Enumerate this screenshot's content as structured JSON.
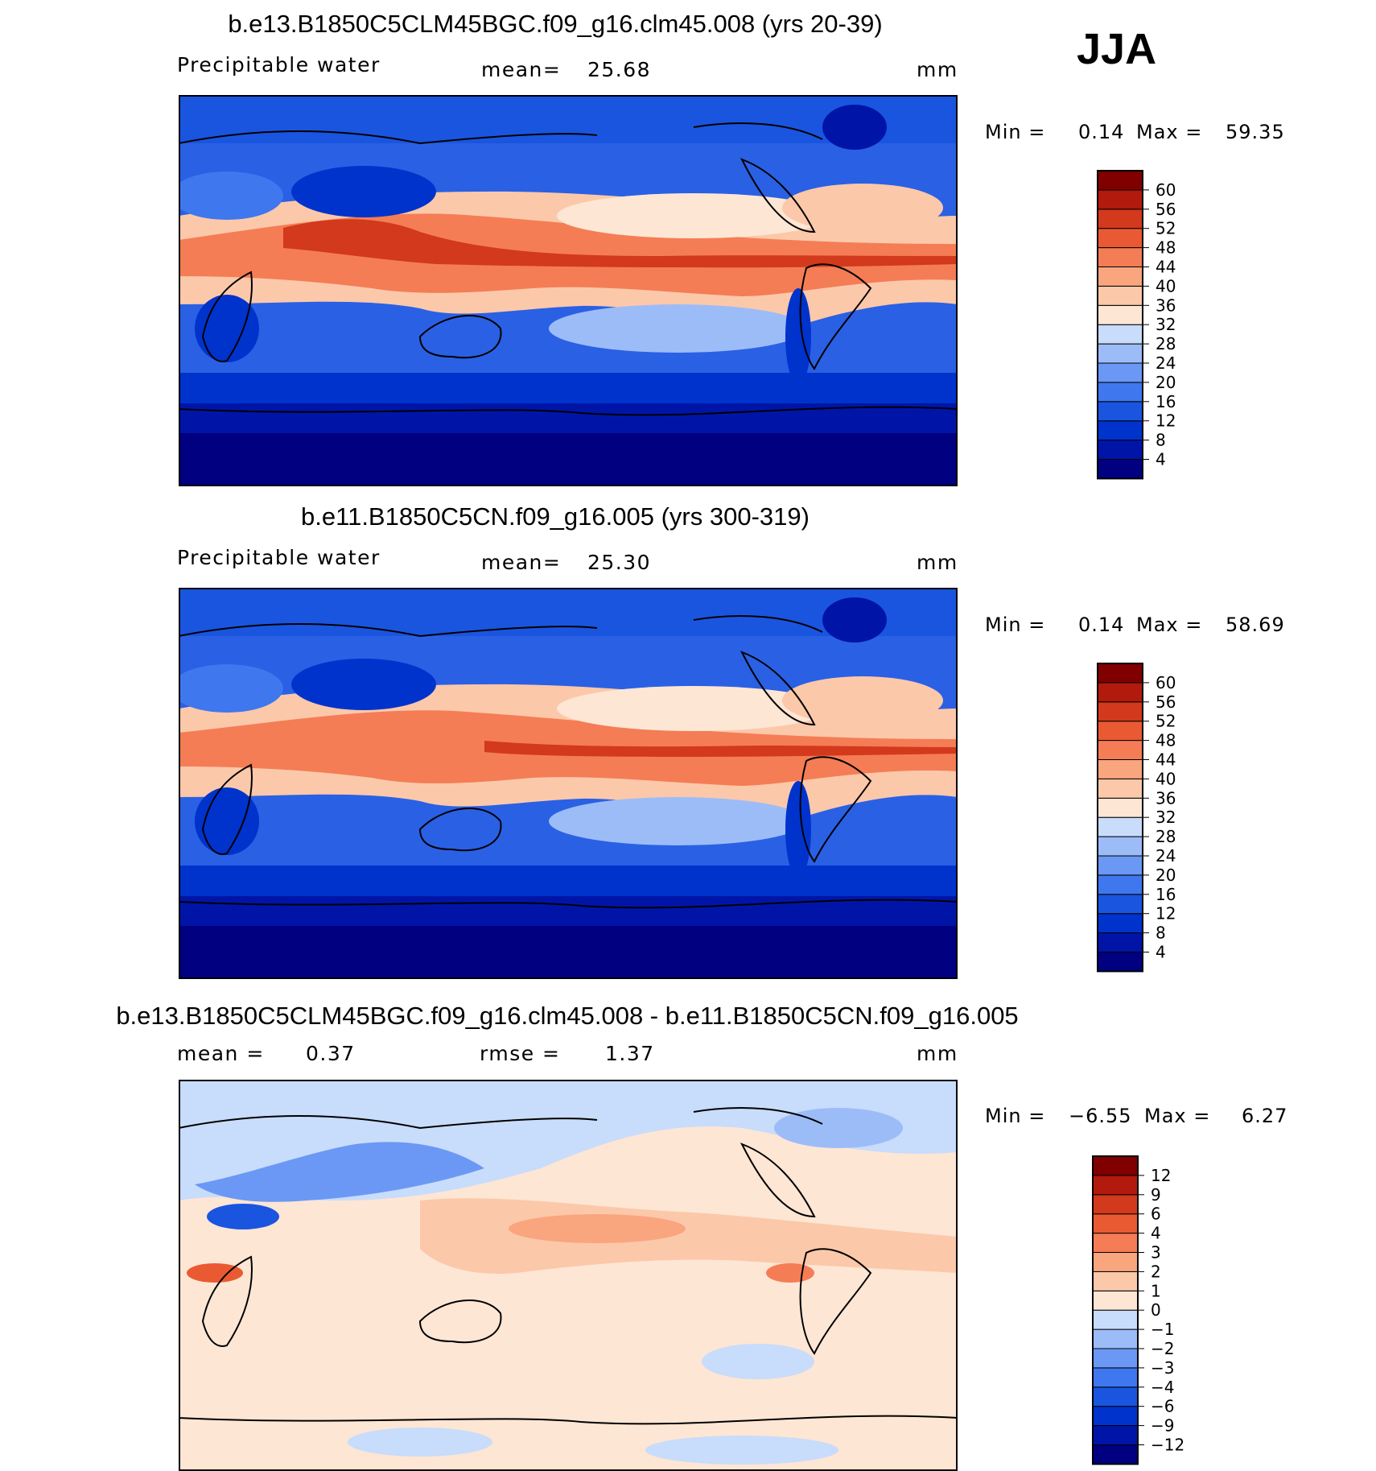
{
  "season": "JJA",
  "panels": [
    {
      "title": "b.e13.B1850C5CLM45BGC.f09_g16.clm45.008 (yrs 20-39)",
      "left": "Precipitable water",
      "center_label": "mean=",
      "center_value": "25.68",
      "units": "mm",
      "min_label": "Min =",
      "min_value": "0.14",
      "max_label": "Max =",
      "max_value": "59.35",
      "colorbar_labels": [
        "60",
        "56",
        "52",
        "48",
        "44",
        "40",
        "36",
        "32",
        "28",
        "24",
        "20",
        "16",
        "12",
        "8",
        "4"
      ],
      "colors": [
        "#000080",
        "#0015a8",
        "#0033cc",
        "#1a55e0",
        "#3f77ee",
        "#6b98f4",
        "#9cbcf8",
        "#c8dcfb",
        "#fde6d4",
        "#fcc8aa",
        "#f9a57e",
        "#f47d55",
        "#e95a33",
        "#d3391c",
        "#b11a0c",
        "#800000"
      ]
    },
    {
      "title": "b.e11.B1850C5CN.f09_g16.005 (yrs 300-319)",
      "left": "Precipitable water",
      "center_label": "mean=",
      "center_value": "25.30",
      "units": "mm",
      "min_label": "Min =",
      "min_value": "0.14",
      "max_label": "Max =",
      "max_value": "58.69",
      "colorbar_labels": [
        "60",
        "56",
        "52",
        "48",
        "44",
        "40",
        "36",
        "32",
        "28",
        "24",
        "20",
        "16",
        "12",
        "8",
        "4"
      ],
      "colors": [
        "#000080",
        "#0015a8",
        "#0033cc",
        "#1a55e0",
        "#3f77ee",
        "#6b98f4",
        "#9cbcf8",
        "#c8dcfb",
        "#fde6d4",
        "#fcc8aa",
        "#f9a57e",
        "#f47d55",
        "#e95a33",
        "#d3391c",
        "#b11a0c",
        "#800000"
      ]
    },
    {
      "title": "b.e13.B1850C5CLM45BGC.f09_g16.clm45.008 - b.e11.B1850C5CN.f09_g16.005",
      "left": "mean =",
      "left_value": "0.37",
      "center_label": "rmse =",
      "center_value": "1.37",
      "units": "mm",
      "min_label": "Min =",
      "min_value": "−6.55",
      "max_label": "Max =",
      "max_value": "6.27",
      "colorbar_labels": [
        "12",
        "9",
        "6",
        "4",
        "3",
        "2",
        "1",
        "0",
        "−1",
        "−2",
        "−3",
        "−4",
        "−6",
        "−9",
        "−12"
      ],
      "colors": [
        "#000080",
        "#0015a8",
        "#0033cc",
        "#1a55e0",
        "#3f77ee",
        "#6b98f4",
        "#9cbcf8",
        "#c8dcfb",
        "#fde6d4",
        "#fcc8aa",
        "#f9a57e",
        "#f47d55",
        "#e95a33",
        "#d3391c",
        "#b11a0c",
        "#800000"
      ]
    }
  ]
}
